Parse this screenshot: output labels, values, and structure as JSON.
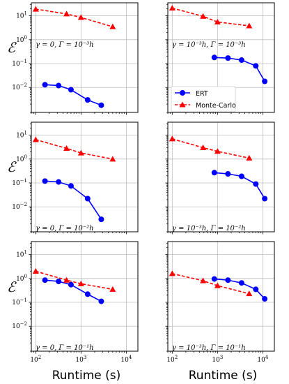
{
  "figure": {
    "ylabel": "ℰ",
    "xlabel": "Runtime (s)",
    "colors": {
      "ert": "#0000ff",
      "mc": "#ff0000"
    },
    "legend": {
      "ert": "ERT",
      "mc": "Monte-Carlo",
      "location": "lower-left of top-right panel"
    },
    "x_ticks": [
      {
        "value": 100,
        "base": "10",
        "exp": "2"
      },
      {
        "value": 1000,
        "base": "10",
        "exp": "3"
      },
      {
        "value": 10000,
        "base": "10",
        "exp": "4"
      }
    ],
    "y_ticks": [
      {
        "value": 0.01,
        "base": "10",
        "exp": "−2"
      },
      {
        "value": 0.1,
        "base": "10",
        "exp": "−1"
      },
      {
        "value": 1,
        "base": "10",
        "exp": "0"
      },
      {
        "value": 10,
        "base": "10",
        "exp": "1"
      }
    ]
  },
  "chart_data": [
    {
      "type": "line",
      "label": "γ = 0, Γ = 10⁻³h",
      "xscale": "log",
      "yscale": "log",
      "xlim": [
        80,
        18000
      ],
      "ylim": [
        0.0009,
        35
      ],
      "grid": true,
      "series": [
        {
          "name": "ERT",
          "marker": "circle",
          "style": "solid",
          "x": [
            160,
            320,
            600,
            1400,
            2800
          ],
          "y": [
            0.013,
            0.012,
            0.008,
            0.003,
            0.0018
          ]
        },
        {
          "name": "Monte-Carlo",
          "marker": "triangle",
          "style": "dashed",
          "x": [
            100,
            480,
            1000,
            5000
          ],
          "y": [
            19,
            12,
            8.5,
            3.5
          ]
        }
      ]
    },
    {
      "type": "line",
      "label": "γ = 10⁻³h, Γ = 10⁻³h",
      "xscale": "log",
      "yscale": "log",
      "xlim": [
        80,
        18000
      ],
      "ylim": [
        0.0009,
        35
      ],
      "grid": true,
      "series": [
        {
          "name": "ERT",
          "marker": "circle",
          "style": "solid",
          "x": [
            850,
            1700,
            3400,
            7000,
            11000
          ],
          "y": [
            0.18,
            0.17,
            0.14,
            0.08,
            0.018
          ]
        },
        {
          "name": "Monte-Carlo",
          "marker": "triangle",
          "style": "dashed",
          "x": [
            100,
            480,
            1000,
            5000
          ],
          "y": [
            21,
            9.5,
            5.5,
            3.8
          ]
        }
      ]
    },
    {
      "type": "line",
      "label": "γ = 0, Γ = 10⁻²h",
      "xscale": "log",
      "yscale": "log",
      "xlim": [
        80,
        18000
      ],
      "ylim": [
        0.0009,
        35
      ],
      "grid": true,
      "series": [
        {
          "name": "ERT",
          "marker": "circle",
          "style": "solid",
          "x": [
            160,
            320,
            600,
            1400,
            2800
          ],
          "y": [
            0.12,
            0.11,
            0.075,
            0.022,
            0.003
          ]
        },
        {
          "name": "Monte-Carlo",
          "marker": "triangle",
          "style": "dashed",
          "x": [
            100,
            480,
            1000,
            5000
          ],
          "y": [
            6.5,
            2.8,
            1.8,
            1.0
          ]
        }
      ]
    },
    {
      "type": "line",
      "label": "γ = 10⁻³h, Γ = 10⁻²h",
      "xscale": "log",
      "yscale": "log",
      "xlim": [
        80,
        18000
      ],
      "ylim": [
        0.0009,
        35
      ],
      "grid": true,
      "series": [
        {
          "name": "ERT",
          "marker": "circle",
          "style": "solid",
          "x": [
            850,
            1700,
            3400,
            7000,
            11000
          ],
          "y": [
            0.27,
            0.24,
            0.19,
            0.09,
            0.022
          ]
        },
        {
          "name": "Monte-Carlo",
          "marker": "triangle",
          "style": "dashed",
          "x": [
            100,
            480,
            1000,
            5000
          ],
          "y": [
            7.0,
            3.0,
            2.1,
            1.1
          ]
        }
      ]
    },
    {
      "type": "line",
      "label": "γ = 0, Γ = 10⁻¹h",
      "xscale": "log",
      "yscale": "log",
      "xlim": [
        80,
        18000
      ],
      "ylim": [
        0.0009,
        35
      ],
      "grid": true,
      "series": [
        {
          "name": "ERT",
          "marker": "circle",
          "style": "solid",
          "x": [
            160,
            320,
            600,
            1400,
            2800
          ],
          "y": [
            0.85,
            0.75,
            0.55,
            0.22,
            0.11
          ]
        },
        {
          "name": "Monte-Carlo",
          "marker": "triangle",
          "style": "dashed",
          "x": [
            100,
            480,
            1000,
            5000
          ],
          "y": [
            2.0,
            0.85,
            0.6,
            0.35
          ]
        }
      ]
    },
    {
      "type": "line",
      "label": "γ = 10⁻³h, Γ = 10⁻¹h",
      "xscale": "log",
      "yscale": "log",
      "xlim": [
        80,
        18000
      ],
      "ylim": [
        0.0009,
        35
      ],
      "grid": true,
      "series": [
        {
          "name": "ERT",
          "marker": "circle",
          "style": "solid",
          "x": [
            850,
            1700,
            3400,
            7000,
            11000
          ],
          "y": [
            0.95,
            0.85,
            0.65,
            0.35,
            0.14
          ]
        },
        {
          "name": "Monte-Carlo",
          "marker": "triangle",
          "style": "dashed",
          "x": [
            100,
            480,
            1000,
            5000
          ],
          "y": [
            1.6,
            0.8,
            0.5,
            0.23
          ]
        }
      ]
    }
  ]
}
